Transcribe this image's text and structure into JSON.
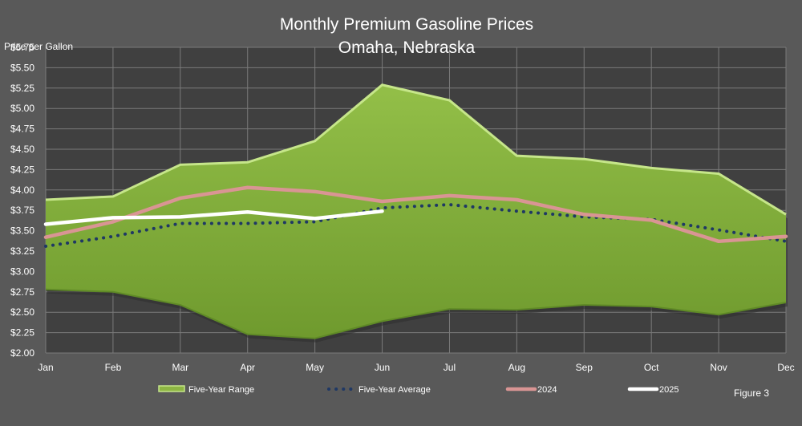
{
  "chart_data": {
    "type": "area",
    "title": "Monthly Premium Gasoline Prices",
    "subtitle": "Omaha, Nebraska",
    "ylabel": "Price per Gallon",
    "xlabel": "",
    "figure_label": "Figure 3",
    "categories": [
      "Jan",
      "Feb",
      "Mar",
      "Apr",
      "May",
      "Jun",
      "Jul",
      "Aug",
      "Sep",
      "Oct",
      "Nov",
      "Dec"
    ],
    "ylim": [
      2.0,
      5.75
    ],
    "yticks": [
      "$2.00",
      "$2.25",
      "$2.50",
      "$2.75",
      "$3.00",
      "$3.25",
      "$3.50",
      "$3.75",
      "$4.00",
      "$4.25",
      "$4.50",
      "$4.75",
      "$5.00",
      "$5.25",
      "$5.50",
      "$5.75"
    ],
    "ytick_values": [
      2.0,
      2.25,
      2.5,
      2.75,
      3.0,
      3.25,
      3.5,
      3.75,
      4.0,
      4.25,
      4.5,
      4.75,
      5.0,
      5.25,
      5.5,
      5.75
    ],
    "grid": true,
    "legend_position": "bottom",
    "range": {
      "name": "Five-Year Range",
      "high": [
        3.88,
        3.92,
        4.31,
        4.34,
        4.6,
        5.29,
        5.1,
        4.42,
        4.38,
        4.27,
        4.2,
        3.7
      ],
      "low": [
        2.78,
        2.75,
        2.59,
        2.23,
        2.18,
        2.39,
        2.54,
        2.53,
        2.59,
        2.57,
        2.47,
        2.62
      ],
      "color": "#8db543"
    },
    "series": [
      {
        "name": "Five-Year Average",
        "values": [
          3.31,
          3.43,
          3.59,
          3.59,
          3.61,
          3.78,
          3.82,
          3.74,
          3.67,
          3.64,
          3.51,
          3.37
        ],
        "color": "#1f3864",
        "style": "dotted"
      },
      {
        "name": "2024",
        "values": [
          3.42,
          3.61,
          3.9,
          4.03,
          3.98,
          3.86,
          3.93,
          3.88,
          3.7,
          3.63,
          3.37,
          3.43
        ],
        "color": "#d99594",
        "style": "solid"
      },
      {
        "name": "2025",
        "values": [
          3.58,
          3.66,
          3.67,
          3.73,
          3.65,
          3.74,
          null,
          null,
          null,
          null,
          null,
          null
        ],
        "color": "#ffffff",
        "style": "solid"
      }
    ]
  }
}
